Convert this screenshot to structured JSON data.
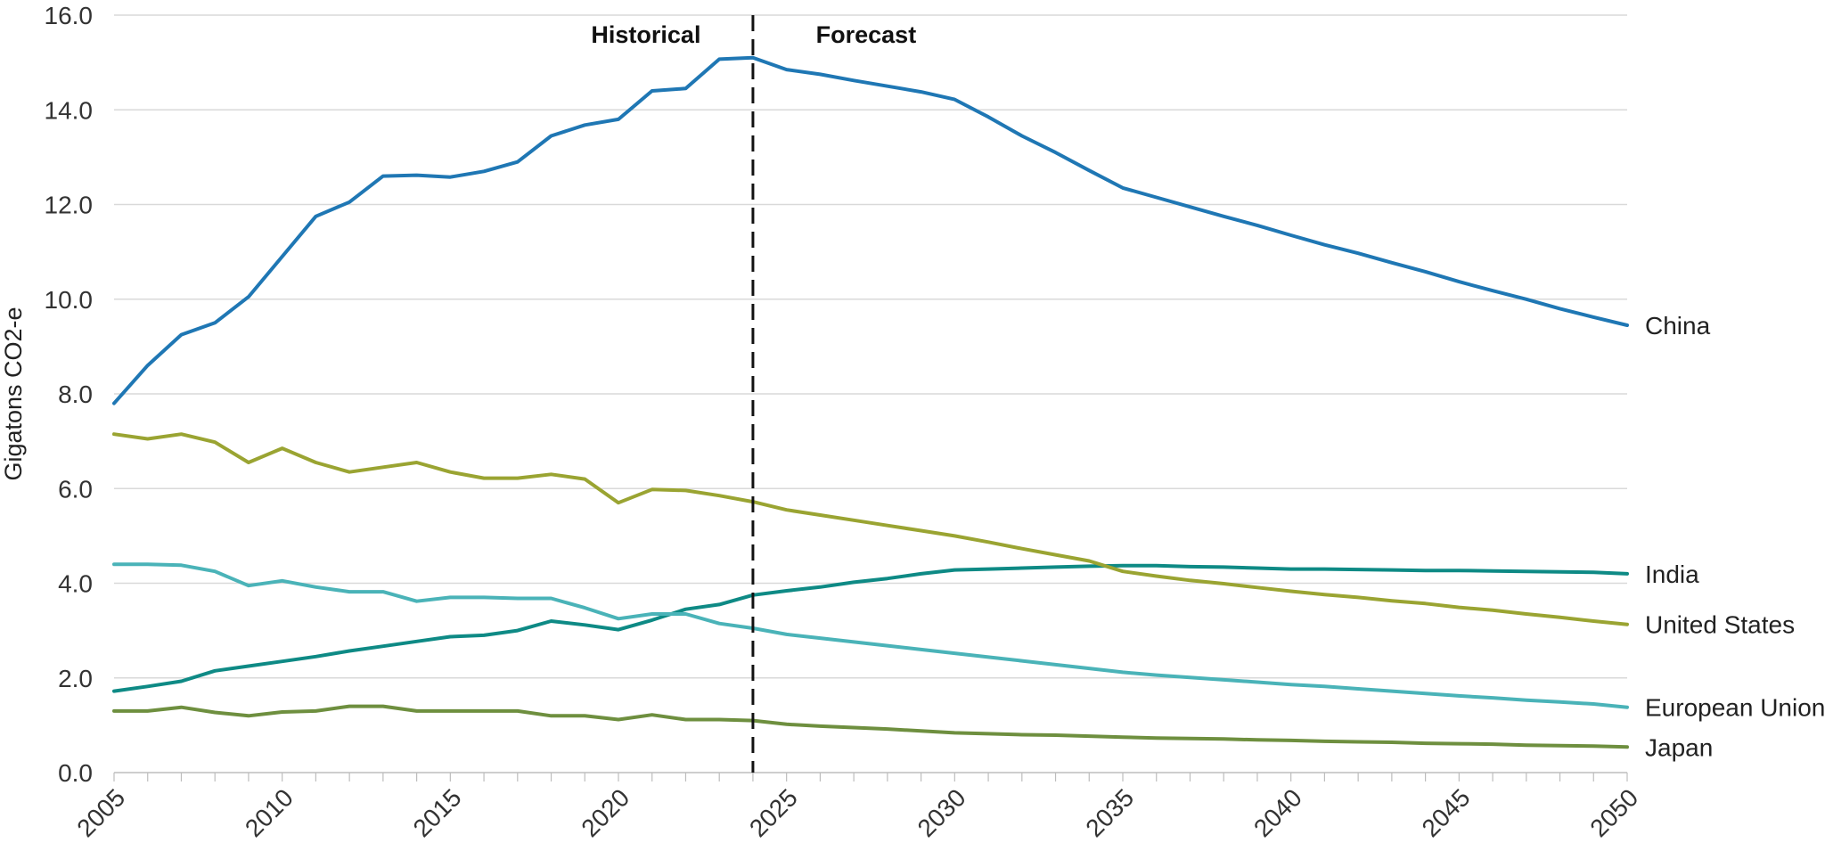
{
  "chart_data": {
    "type": "line",
    "ylabel": "Gigatons CO2-e",
    "xlabel": "",
    "xlim": [
      2005,
      2050
    ],
    "ylim": [
      0,
      16
    ],
    "yticks": [
      0,
      2,
      4,
      6,
      8,
      10,
      12,
      14,
      16
    ],
    "ytick_labels": [
      "0.0",
      "2.0",
      "4.0",
      "6.0",
      "8.0",
      "10.0",
      "12.0",
      "14.0",
      "16.0"
    ],
    "xticks": [
      2005,
      2010,
      2015,
      2020,
      2025,
      2030,
      2035,
      2040,
      2045,
      2050
    ],
    "xtick_labels": [
      "2005",
      "2010",
      "2015",
      "2020",
      "2025",
      "2030",
      "2035",
      "2040",
      "2045",
      "2050"
    ],
    "grid": true,
    "legend": "direct labels at right end of lines",
    "divider": {
      "x": 2024,
      "left_label": "Historical",
      "right_label": "Forecast"
    },
    "x": [
      2005,
      2006,
      2007,
      2008,
      2009,
      2010,
      2011,
      2012,
      2013,
      2014,
      2015,
      2016,
      2017,
      2018,
      2019,
      2020,
      2021,
      2022,
      2023,
      2024,
      2025,
      2026,
      2027,
      2028,
      2029,
      2030,
      2031,
      2032,
      2033,
      2034,
      2035,
      2036,
      2037,
      2038,
      2039,
      2040,
      2041,
      2042,
      2043,
      2044,
      2045,
      2046,
      2047,
      2048,
      2049,
      2050
    ],
    "series": [
      {
        "name": "China",
        "color": "#1f77b4",
        "values": [
          7.8,
          8.6,
          9.25,
          9.5,
          10.05,
          10.9,
          11.75,
          12.05,
          12.6,
          12.62,
          12.58,
          12.7,
          12.9,
          13.45,
          13.68,
          13.8,
          14.4,
          14.45,
          15.07,
          15.1,
          14.85,
          14.75,
          14.62,
          14.5,
          14.38,
          14.22,
          13.85,
          13.45,
          13.1,
          12.72,
          12.35,
          12.15,
          11.95,
          11.75,
          11.56,
          11.35,
          11.15,
          10.97,
          10.77,
          10.58,
          10.37,
          10.18,
          10.0,
          9.8,
          9.62,
          9.45
        ]
      },
      {
        "name": "India",
        "color": "#0e8a85",
        "values": [
          1.72,
          1.82,
          1.93,
          2.15,
          2.25,
          2.35,
          2.45,
          2.57,
          2.67,
          2.77,
          2.87,
          2.9,
          3.0,
          3.2,
          3.12,
          3.02,
          3.22,
          3.45,
          3.55,
          3.75,
          3.84,
          3.92,
          4.02,
          4.1,
          4.2,
          4.28,
          4.3,
          4.32,
          4.34,
          4.36,
          4.37,
          4.37,
          4.35,
          4.34,
          4.32,
          4.3,
          4.3,
          4.29,
          4.28,
          4.27,
          4.27,
          4.26,
          4.25,
          4.24,
          4.23,
          4.2
        ]
      },
      {
        "name": "United States",
        "color": "#9aa432",
        "values": [
          7.15,
          7.05,
          7.15,
          6.98,
          6.55,
          6.85,
          6.55,
          6.35,
          6.45,
          6.55,
          6.35,
          6.22,
          6.22,
          6.3,
          6.2,
          5.7,
          5.98,
          5.96,
          5.85,
          5.72,
          5.55,
          5.44,
          5.33,
          5.22,
          5.11,
          5.0,
          4.87,
          4.73,
          4.6,
          4.47,
          4.25,
          4.15,
          4.06,
          3.99,
          3.91,
          3.83,
          3.76,
          3.7,
          3.63,
          3.57,
          3.49,
          3.43,
          3.35,
          3.28,
          3.2,
          3.13
        ]
      },
      {
        "name": "European Union",
        "color": "#4ab3b8",
        "values": [
          4.4,
          4.4,
          4.38,
          4.25,
          3.95,
          4.05,
          3.92,
          3.82,
          3.82,
          3.62,
          3.7,
          3.7,
          3.68,
          3.68,
          3.48,
          3.25,
          3.35,
          3.35,
          3.15,
          3.05,
          2.92,
          2.84,
          2.76,
          2.68,
          2.6,
          2.52,
          2.44,
          2.36,
          2.28,
          2.2,
          2.12,
          2.06,
          2.01,
          1.96,
          1.91,
          1.86,
          1.82,
          1.77,
          1.72,
          1.67,
          1.62,
          1.58,
          1.53,
          1.49,
          1.45,
          1.38
        ]
      },
      {
        "name": "Japan",
        "color": "#6e8f3f",
        "values": [
          1.3,
          1.3,
          1.38,
          1.27,
          1.2,
          1.28,
          1.3,
          1.4,
          1.4,
          1.3,
          1.3,
          1.3,
          1.3,
          1.2,
          1.2,
          1.12,
          1.22,
          1.12,
          1.12,
          1.1,
          1.02,
          0.98,
          0.95,
          0.92,
          0.88,
          0.84,
          0.82,
          0.8,
          0.79,
          0.77,
          0.75,
          0.73,
          0.72,
          0.71,
          0.69,
          0.68,
          0.66,
          0.65,
          0.64,
          0.62,
          0.61,
          0.6,
          0.58,
          0.57,
          0.56,
          0.54
        ]
      }
    ]
  }
}
